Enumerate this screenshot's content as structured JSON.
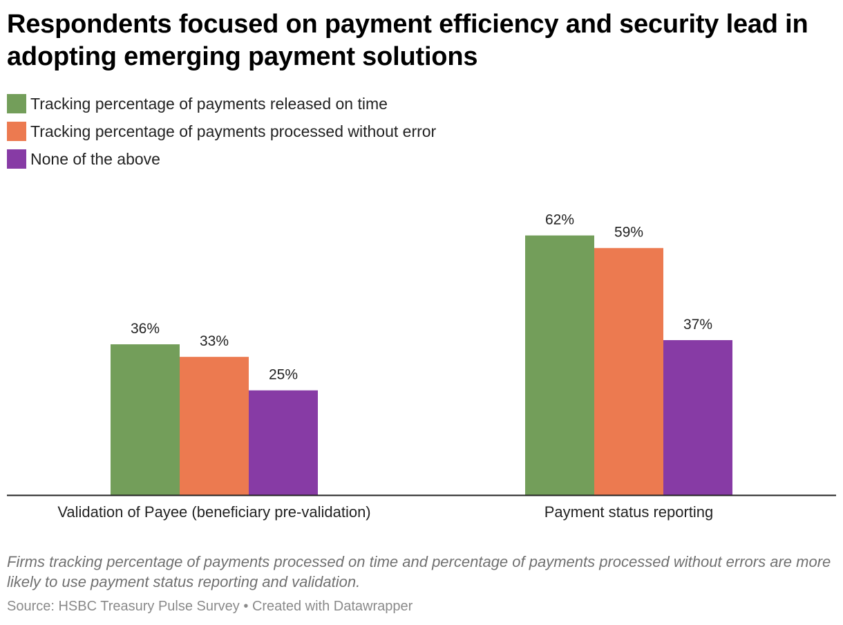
{
  "title": "Respondents focused on payment efficiency and security lead in adopting emerging payment solutions",
  "note": "Firms tracking percentage of payments processed on time and percentage of payments processed without errors are more likely to use payment status reporting and validation.",
  "footer": {
    "source": "Source: HSBC Treasury Pulse Survey",
    "separator": "•",
    "credit": "Created with Datawrapper"
  },
  "chart_data": {
    "type": "bar",
    "categories": [
      "Validation of Payee (beneficiary pre-validation)",
      "Payment status reporting"
    ],
    "series": [
      {
        "name": "Tracking percentage of payments released on time",
        "color": "#739e5a",
        "values": [
          36,
          62
        ],
        "labels": [
          "36%",
          "62%"
        ]
      },
      {
        "name": "Tracking percentage of payments processed without error",
        "color": "#ec7a50",
        "values": [
          33,
          59
        ],
        "labels": [
          "33%",
          "59%"
        ]
      },
      {
        "name": "None of the above",
        "color": "#873ba5",
        "values": [
          25,
          37
        ],
        "labels": [
          "25%",
          "37%"
        ]
      }
    ],
    "ylim": [
      0,
      72
    ],
    "grid": false,
    "legend_position": "top-left"
  }
}
